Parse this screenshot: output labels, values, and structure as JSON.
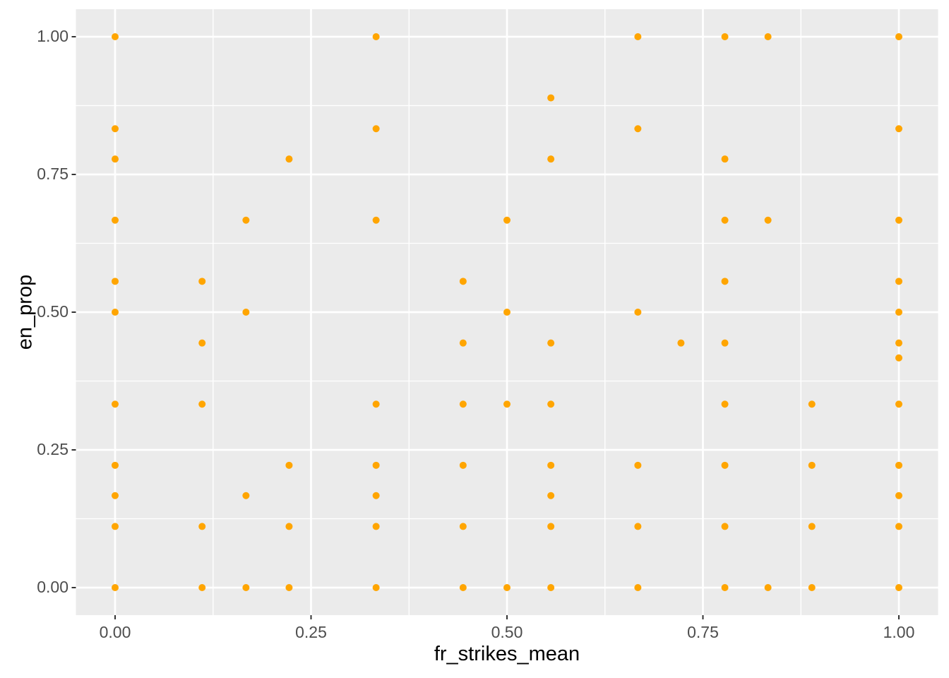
{
  "chart_data": {
    "type": "scatter",
    "title": "",
    "xlabel": "fr_strikes_mean",
    "ylabel": "en_prop",
    "xlim": [
      0,
      1
    ],
    "ylim": [
      0,
      1
    ],
    "axis_expansion": 0.05,
    "grid": true,
    "legend": false,
    "x_ticks": {
      "values": [
        0,
        0.25,
        0.5,
        0.75,
        1
      ],
      "labels": [
        "0.00",
        "0.25",
        "0.50",
        "0.75",
        "1.00"
      ]
    },
    "y_ticks": {
      "values": [
        0,
        0.25,
        0.5,
        0.75,
        1
      ],
      "labels": [
        "0.00",
        "0.25",
        "0.50",
        "0.75",
        "1.00"
      ]
    },
    "minor_gridlines_x": [
      0.125,
      0.375,
      0.625,
      0.875
    ],
    "minor_gridlines_y": [
      0.125,
      0.375,
      0.625,
      0.875
    ],
    "colors": {
      "point": "#FFA500",
      "panel_background": "#EBEBEB",
      "gridline": "#FFFFFF",
      "tick_mark": "#333333",
      "tick_label": "#4D4D4D",
      "axis_title": "#000000"
    },
    "points": [
      [
        0,
        1
      ],
      [
        0.333,
        1
      ],
      [
        0.667,
        1
      ],
      [
        0.778,
        1
      ],
      [
        0.833,
        1
      ],
      [
        1,
        1
      ],
      [
        0.556,
        0.889
      ],
      [
        0,
        0.833
      ],
      [
        0.333,
        0.833
      ],
      [
        0.667,
        0.833
      ],
      [
        1,
        0.833
      ],
      [
        0,
        0.778
      ],
      [
        0.222,
        0.778
      ],
      [
        0.556,
        0.778
      ],
      [
        0.778,
        0.778
      ],
      [
        0,
        0.667
      ],
      [
        0.167,
        0.667
      ],
      [
        0.333,
        0.667
      ],
      [
        0.5,
        0.667
      ],
      [
        0.778,
        0.667
      ],
      [
        0.833,
        0.667
      ],
      [
        1,
        0.667
      ],
      [
        0,
        0.556
      ],
      [
        0.111,
        0.556
      ],
      [
        0.444,
        0.556
      ],
      [
        0.778,
        0.556
      ],
      [
        1,
        0.556
      ],
      [
        0,
        0.5
      ],
      [
        0.167,
        0.5
      ],
      [
        0.5,
        0.5
      ],
      [
        0.667,
        0.5
      ],
      [
        1,
        0.5
      ],
      [
        0.111,
        0.444
      ],
      [
        0.444,
        0.444
      ],
      [
        0.556,
        0.444
      ],
      [
        0.722,
        0.444
      ],
      [
        0.778,
        0.444
      ],
      [
        1,
        0.444
      ],
      [
        1,
        0.417
      ],
      [
        0,
        0.333
      ],
      [
        0.111,
        0.333
      ],
      [
        0.333,
        0.333
      ],
      [
        0.444,
        0.333
      ],
      [
        0.5,
        0.333
      ],
      [
        0.556,
        0.333
      ],
      [
        0.778,
        0.333
      ],
      [
        0.889,
        0.333
      ],
      [
        1,
        0.333
      ],
      [
        0,
        0.222
      ],
      [
        0.222,
        0.222
      ],
      [
        0.333,
        0.222
      ],
      [
        0.444,
        0.222
      ],
      [
        0.556,
        0.222
      ],
      [
        0.667,
        0.222
      ],
      [
        0.778,
        0.222
      ],
      [
        0.889,
        0.222
      ],
      [
        1,
        0.222
      ],
      [
        0,
        0.167
      ],
      [
        0.167,
        0.167
      ],
      [
        0.333,
        0.167
      ],
      [
        0.556,
        0.167
      ],
      [
        1,
        0.167
      ],
      [
        0,
        0.111
      ],
      [
        0.111,
        0.111
      ],
      [
        0.222,
        0.111
      ],
      [
        0.333,
        0.111
      ],
      [
        0.444,
        0.111
      ],
      [
        0.556,
        0.111
      ],
      [
        0.667,
        0.111
      ],
      [
        0.778,
        0.111
      ],
      [
        0.889,
        0.111
      ],
      [
        1,
        0.111
      ],
      [
        0,
        0
      ],
      [
        0.111,
        0
      ],
      [
        0.167,
        0
      ],
      [
        0.222,
        0
      ],
      [
        0.333,
        0
      ],
      [
        0.444,
        0
      ],
      [
        0.5,
        0
      ],
      [
        0.556,
        0
      ],
      [
        0.667,
        0
      ],
      [
        0.778,
        0
      ],
      [
        0.833,
        0
      ],
      [
        0.889,
        0
      ],
      [
        1,
        0
      ]
    ]
  }
}
